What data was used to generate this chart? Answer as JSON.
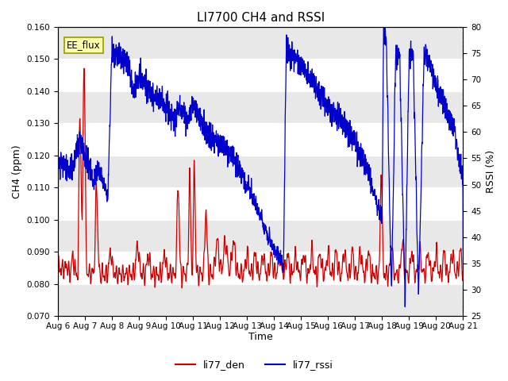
{
  "title": "LI7700 CH4 and RSSI",
  "xlabel": "Time",
  "ylabel_left": "CH4 (ppm)",
  "ylabel_right": "RSSI (%)",
  "ylim_left": [
    0.07,
    0.16
  ],
  "ylim_right": [
    25,
    80
  ],
  "yticks_left": [
    0.07,
    0.08,
    0.09,
    0.1,
    0.11,
    0.12,
    0.13,
    0.14,
    0.15,
    0.16
  ],
  "yticks_right": [
    25,
    30,
    35,
    40,
    45,
    50,
    55,
    60,
    65,
    70,
    75,
    80
  ],
  "xtick_labels": [
    "Aug 6",
    "Aug 7",
    "Aug 8",
    "Aug 9",
    "Aug 10",
    "Aug 11",
    "Aug 12",
    "Aug 13",
    "Aug 14",
    "Aug 15",
    "Aug 16",
    "Aug 17",
    "Aug 18",
    "Aug 19",
    "Aug 20",
    "Aug 21"
  ],
  "ch4_color": "#cc0000",
  "rssi_color": "#0000cc",
  "background_color": "#ffffff",
  "plot_bg_color": "#e8e8e8",
  "stripe_color": "#d0d0d0",
  "annotation_text": "EE_flux",
  "annotation_bg": "#ffffaa",
  "annotation_border": "#999900",
  "title_fontsize": 11,
  "axis_label_fontsize": 9,
  "tick_fontsize": 7.5,
  "legend_fontsize": 9,
  "legend_entries": [
    "li77_den",
    "li77_rssi"
  ],
  "figsize": [
    6.4,
    4.8
  ],
  "dpi": 100
}
